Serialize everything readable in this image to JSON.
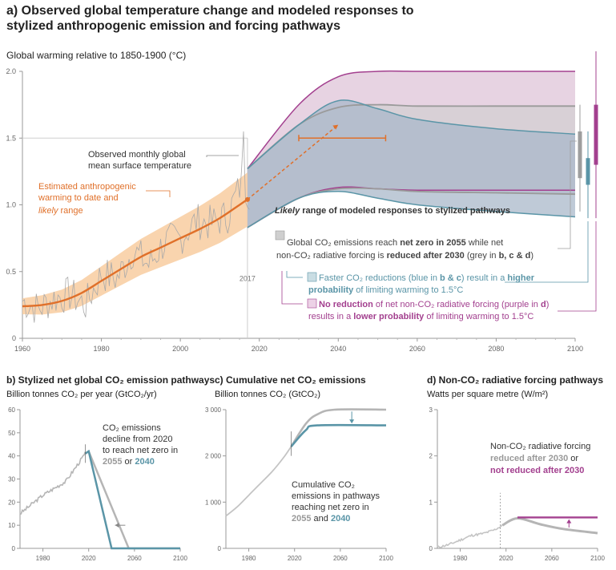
{
  "panel_a": {
    "title": "a) Observed global temperature change and modeled responses to stylized anthropogenic emission and forcing pathways",
    "ylabel": "Global warming relative to 1850-1900 (°C)",
    "yticks": [
      "2.0",
      "1.5",
      "1.0",
      "0.5",
      "0"
    ],
    "xticks": [
      "1960",
      "1980",
      "2000",
      "2020",
      "2040",
      "2060",
      "2080",
      "2100"
    ],
    "obs_label": [
      "Observed monthly global",
      "mean surface temperature"
    ],
    "est_label": [
      "Estimated anthropogenic",
      "warming to date and",
      "likely",
      " range"
    ],
    "year_mark": "2017",
    "legend_heading_italic": "Likely",
    "legend_heading_rest": " range of modeled responses to stylized pathways",
    "legend_grey": [
      "Global CO₂ emissions reach ",
      "net zero in 2055",
      " while net",
      "non-CO₂ radiative forcing is ",
      "reduced after 2030",
      " (grey in ",
      "b, c & d",
      ")"
    ],
    "legend_blue": [
      "Faster CO₂ reductions (blue in ",
      "b & c",
      ") result in a ",
      "higher",
      "probability",
      " of limiting warming to 1.5°C"
    ],
    "legend_purple": [
      "No reduction",
      " of net non-CO₂ radiative forcing (purple in ",
      "d",
      ")",
      "results in a ",
      "lower probability",
      " of limiting warming to 1.5°C"
    ]
  },
  "panel_b": {
    "title": "b) Stylized net global CO₂ emission pathways",
    "ylabel": "Billion tonnes CO₂ per year (GtCO₂/yr)",
    "yticks": [
      "60",
      "50",
      "40",
      "30",
      "20",
      "10",
      "0"
    ],
    "xticks": [
      "1980",
      "2020",
      "2060",
      "2100"
    ],
    "annotation": [
      "CO₂ emissions",
      "decline from 2020",
      "to reach net zero in",
      "2055",
      " or ",
      "2040"
    ]
  },
  "panel_c": {
    "title": "c) Cumulative net CO₂ emissions",
    "ylabel": "Billion tonnes CO₂ (GtCO₂)",
    "yticks": [
      "3 000",
      "2 000",
      "1 000",
      "0"
    ],
    "xticks": [
      "1980",
      "2020",
      "2060",
      "2100"
    ],
    "annotation": [
      "Cumulative CO₂",
      "emissions in pathways",
      "reaching net zero in",
      "2055",
      " and ",
      "2040"
    ]
  },
  "panel_d": {
    "title": "d) Non-CO₂ radiative forcing pathways",
    "ylabel": "Watts per square metre (W/m²)",
    "yticks": [
      "3",
      "2",
      "1",
      "0"
    ],
    "xticks": [
      "1980",
      "2020",
      "2060",
      "2100"
    ],
    "annotation": [
      "Non-CO₂ radiative forcing",
      "reduced after 2030",
      " or",
      "not reduced after 2030"
    ]
  },
  "colors": {
    "grey": "#b0b0b0",
    "blue": "#5a95a7",
    "purple": "#a3408f",
    "orange": "#e0702a",
    "orange_band": "#f7c99a"
  },
  "chart_data": [
    {
      "type": "line",
      "title": "a) Observed global temperature change and modeled responses to stylized anthropogenic emission and forcing pathways",
      "ylabel": "Global warming relative to 1850-1900 (°C)",
      "xlim": [
        1960,
        2100
      ],
      "ylim": [
        0,
        2.0
      ],
      "series": [
        {
          "name": "Estimated anthropogenic warming to date",
          "x": [
            1960,
            1965,
            1970,
            1975,
            1980,
            1985,
            1990,
            1995,
            2000,
            2005,
            2010,
            2015,
            2017
          ],
          "y": [
            0.24,
            0.25,
            0.28,
            0.34,
            0.43,
            0.52,
            0.61,
            0.68,
            0.75,
            0.82,
            0.9,
            1.0,
            1.04
          ]
        },
        {
          "name": "Observed monthly global mean surface temperature",
          "x": [
            1960,
            1964,
            1968,
            1972,
            1976,
            1980,
            1984,
            1988,
            1992,
            1996,
            2000,
            2004,
            2008,
            2012,
            2016,
            2017
          ],
          "y": [
            0.28,
            0.22,
            0.3,
            0.33,
            0.25,
            0.48,
            0.45,
            0.66,
            0.55,
            0.72,
            0.75,
            0.88,
            0.86,
            0.92,
            1.2,
            1.1
          ]
        },
        {
          "name": "grey range upper",
          "x": [
            2017,
            2030,
            2040,
            2050,
            2060,
            2080,
            2100
          ],
          "y": [
            1.27,
            1.6,
            1.73,
            1.75,
            1.74,
            1.74,
            1.74
          ]
        },
        {
          "name": "grey range lower",
          "x": [
            2017,
            2030,
            2040,
            2050,
            2060,
            2080,
            2100
          ],
          "y": [
            0.83,
            1.05,
            1.12,
            1.12,
            1.1,
            1.09,
            1.08
          ]
        },
        {
          "name": "blue range upper",
          "x": [
            2017,
            2030,
            2040,
            2050,
            2060,
            2080,
            2100
          ],
          "y": [
            1.27,
            1.6,
            1.78,
            1.72,
            1.64,
            1.57,
            1.53
          ]
        },
        {
          "name": "blue range lower",
          "x": [
            2017,
            2030,
            2040,
            2050,
            2060,
            2080,
            2100
          ],
          "y": [
            0.83,
            1.05,
            1.1,
            1.05,
            1.0,
            0.95,
            0.91
          ]
        },
        {
          "name": "purple range upper",
          "x": [
            2017,
            2030,
            2040,
            2050,
            2060,
            2080,
            2100
          ],
          "y": [
            1.27,
            1.75,
            1.96,
            2.0,
            2.0,
            2.0,
            2.0
          ]
        },
        {
          "name": "purple range lower",
          "x": [
            2017,
            2030,
            2040,
            2050,
            2060,
            2080,
            2100
          ],
          "y": [
            0.83,
            1.05,
            1.13,
            1.12,
            1.11,
            1.11,
            1.11
          ]
        }
      ],
      "bars_right": [
        {
          "color": "grey",
          "range": [
            1.2,
            1.55
          ]
        },
        {
          "color": "blue",
          "range": [
            1.15,
            1.35
          ]
        },
        {
          "color": "purple",
          "range": [
            1.3,
            1.75
          ]
        }
      ]
    },
    {
      "type": "line",
      "title": "b) Stylized net global CO₂ emission pathways",
      "ylabel": "Billion tonnes CO₂ per year (GtCO₂/yr)",
      "xlim": [
        1960,
        2100
      ],
      "ylim": [
        0,
        60
      ],
      "series": [
        {
          "name": "historical",
          "x": [
            1960,
            1970,
            1980,
            1990,
            2000,
            2010,
            2017
          ],
          "y": [
            15,
            19,
            23,
            26,
            29,
            36,
            41
          ]
        },
        {
          "name": "2055",
          "x": [
            2017,
            2020,
            2055,
            2100
          ],
          "y": [
            41,
            42,
            0,
            0
          ]
        },
        {
          "name": "2040",
          "x": [
            2017,
            2020,
            2040,
            2100
          ],
          "y": [
            41,
            42,
            0,
            0
          ]
        }
      ]
    },
    {
      "type": "line",
      "title": "c) Cumulative net CO₂ emissions",
      "ylabel": "Billion tonnes CO₂ (GtCO₂)",
      "xlim": [
        1960,
        2100
      ],
      "ylim": [
        0,
        3000
      ],
      "series": [
        {
          "name": "historical",
          "x": [
            1960,
            1970,
            1980,
            1990,
            2000,
            2010,
            2017
          ],
          "y": [
            700,
            900,
            1150,
            1400,
            1650,
            1950,
            2200
          ]
        },
        {
          "name": "2055",
          "x": [
            2017,
            2030,
            2040,
            2055,
            2100
          ],
          "y": [
            2200,
            2700,
            2900,
            3000,
            3000
          ]
        },
        {
          "name": "2040",
          "x": [
            2017,
            2030,
            2040,
            2100
          ],
          "y": [
            2200,
            2560,
            2660,
            2660
          ]
        }
      ]
    },
    {
      "type": "line",
      "title": "d) Non-CO₂ radiative forcing pathways",
      "ylabel": "Watts per square metre (W/m²)",
      "xlim": [
        1960,
        2100
      ],
      "ylim": [
        0,
        3
      ],
      "series": [
        {
          "name": "historical",
          "x": [
            1960,
            1970,
            1980,
            1990,
            2000,
            2010,
            2017
          ],
          "y": [
            0.02,
            0.08,
            0.18,
            0.28,
            0.32,
            0.4,
            0.5
          ]
        },
        {
          "name": "reduced after 2030",
          "x": [
            2017,
            2030,
            2050,
            2070,
            2100
          ],
          "y": [
            0.5,
            0.65,
            0.52,
            0.42,
            0.33
          ]
        },
        {
          "name": "not reduced after 2030",
          "x": [
            2030,
            2100
          ],
          "y": [
            0.67,
            0.67
          ]
        }
      ]
    }
  ]
}
